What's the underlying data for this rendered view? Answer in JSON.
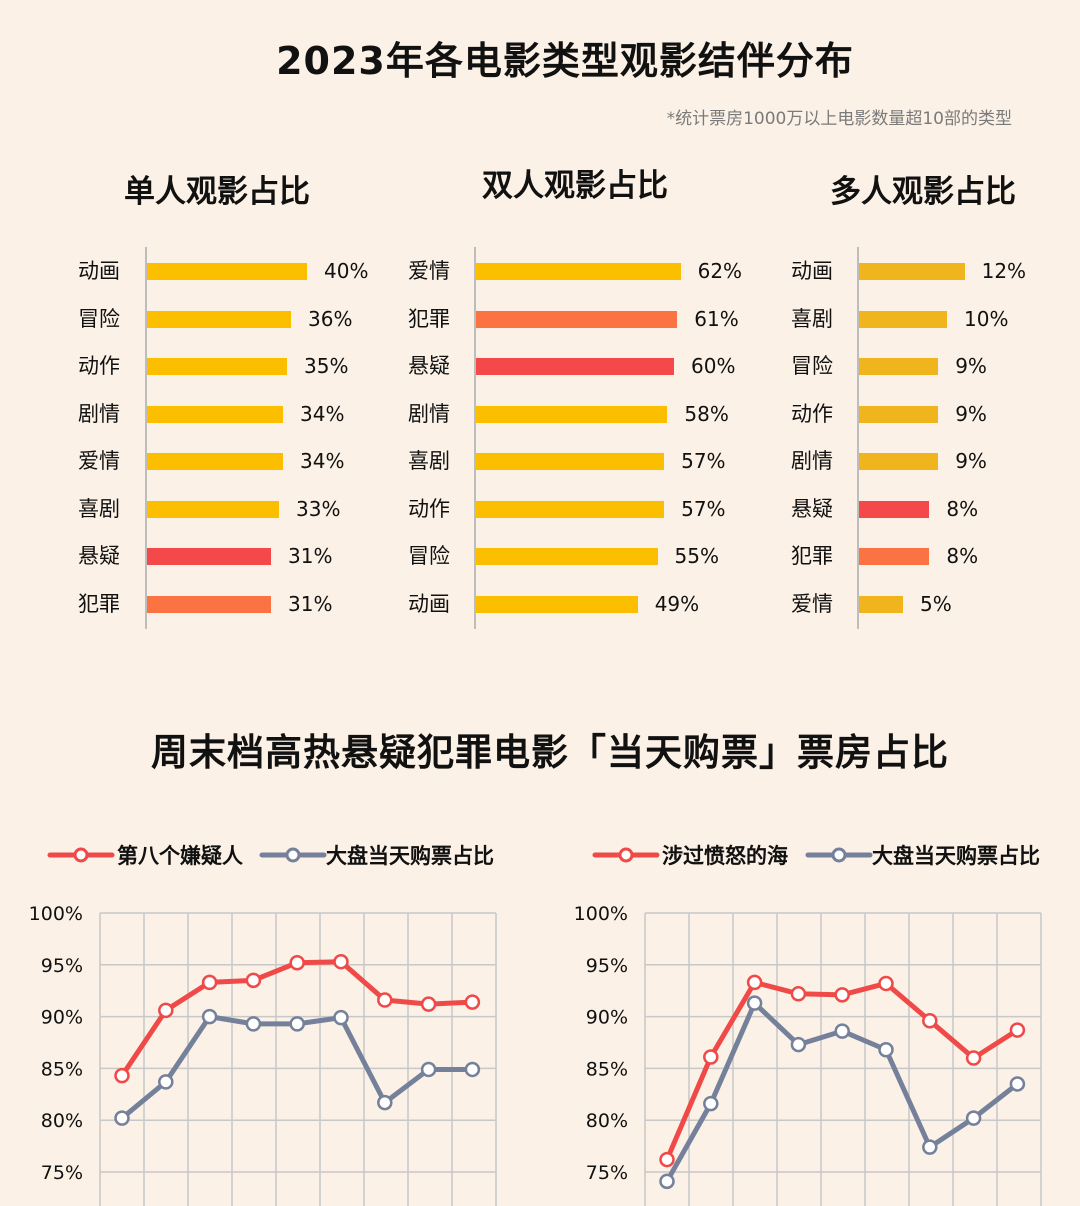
{
  "title": "2023年各电影类型观影结伴分布",
  "footnote": "*统计票房1000万以上电影数量超10部的类型",
  "colors": {
    "background": "#fbf1e6",
    "yellow": "#fbbf00",
    "gold": "#f0b51c",
    "orange": "#fb7342",
    "red": "#f5484a",
    "line_red": "#ef4a48",
    "line_gray": "#75819a"
  },
  "bar_panels": [
    {
      "title": "单人观影占比",
      "items": [
        {
          "label": "动画",
          "value": 40,
          "text": "40%",
          "color": "#fbbf00"
        },
        {
          "label": "冒险",
          "value": 36,
          "text": "36%",
          "color": "#fbbf00"
        },
        {
          "label": "动作",
          "value": 35,
          "text": "35%",
          "color": "#fbbf00"
        },
        {
          "label": "剧情",
          "value": 34,
          "text": "34%",
          "color": "#fbbf00"
        },
        {
          "label": "爱情",
          "value": 34,
          "text": "34%",
          "color": "#fbbf00"
        },
        {
          "label": "喜剧",
          "value": 33,
          "text": "33%",
          "color": "#fbbf00"
        },
        {
          "label": "悬疑",
          "value": 31,
          "text": "31%",
          "color": "#f5484a"
        },
        {
          "label": "犯罪",
          "value": 31,
          "text": "31%",
          "color": "#fb7342"
        }
      ]
    },
    {
      "title": "双人观影占比",
      "items": [
        {
          "label": "爱情",
          "value": 62,
          "text": "62%",
          "color": "#fbbf00"
        },
        {
          "label": "犯罪",
          "value": 61,
          "text": "61%",
          "color": "#fb7342"
        },
        {
          "label": "悬疑",
          "value": 60,
          "text": "60%",
          "color": "#f5484a"
        },
        {
          "label": "剧情",
          "value": 58,
          "text": "58%",
          "color": "#fbbf00"
        },
        {
          "label": "喜剧",
          "value": 57,
          "text": "57%",
          "color": "#fbbf00"
        },
        {
          "label": "动作",
          "value": 57,
          "text": "57%",
          "color": "#fbbf00"
        },
        {
          "label": "冒险",
          "value": 55,
          "text": "55%",
          "color": "#fbbf00"
        },
        {
          "label": "动画",
          "value": 49,
          "text": "49%",
          "color": "#fbbf00"
        }
      ]
    },
    {
      "title": "多人观影占比",
      "items": [
        {
          "label": "动画",
          "value": 12,
          "text": "12%",
          "color": "#f0b51c"
        },
        {
          "label": "喜剧",
          "value": 10,
          "text": "10%",
          "color": "#f0b51c"
        },
        {
          "label": "冒险",
          "value": 9,
          "text": "9%",
          "color": "#f0b51c"
        },
        {
          "label": "动作",
          "value": 9,
          "text": "9%",
          "color": "#f0b51c"
        },
        {
          "label": "剧情",
          "value": 9,
          "text": "9%",
          "color": "#f0b51c"
        },
        {
          "label": "悬疑",
          "value": 8,
          "text": "8%",
          "color": "#f5484a"
        },
        {
          "label": "犯罪",
          "value": 8,
          "text": "8%",
          "color": "#fb7342"
        },
        {
          "label": "爱情",
          "value": 5,
          "text": "5%",
          "color": "#f0b51c"
        }
      ]
    }
  ],
  "section2_title": "周末档高热悬疑犯罪电影「当天购票」票房占比",
  "chart_data": [
    {
      "type": "bar",
      "title": "单人观影占比",
      "orientation": "horizontal",
      "categories": [
        "动画",
        "冒险",
        "动作",
        "剧情",
        "爱情",
        "喜剧",
        "悬疑",
        "犯罪"
      ],
      "values": [
        40,
        36,
        35,
        34,
        34,
        33,
        31,
        31
      ],
      "unit": "%"
    },
    {
      "type": "bar",
      "title": "双人观影占比",
      "orientation": "horizontal",
      "categories": [
        "爱情",
        "犯罪",
        "悬疑",
        "剧情",
        "喜剧",
        "动作",
        "冒险",
        "动画"
      ],
      "values": [
        62,
        61,
        60,
        58,
        57,
        57,
        55,
        49
      ],
      "unit": "%"
    },
    {
      "type": "bar",
      "title": "多人观影占比",
      "orientation": "horizontal",
      "categories": [
        "动画",
        "喜剧",
        "冒险",
        "动作",
        "剧情",
        "悬疑",
        "犯罪",
        "爱情"
      ],
      "values": [
        12,
        10,
        9,
        9,
        9,
        8,
        8,
        5
      ],
      "unit": "%"
    },
    {
      "type": "line",
      "grid": true,
      "legend_position": "top",
      "y_ticks": [
        "100%",
        "95%",
        "90%",
        "85%",
        "80%",
        "75%"
      ],
      "ylim": [
        75,
        100
      ],
      "series": [
        {
          "name": "第八个嫌疑人",
          "color": "#ef4a48",
          "values": [
            84.3,
            90.6,
            93.3,
            93.5,
            95.2,
            95.3,
            91.6,
            91.2,
            91.4
          ]
        },
        {
          "name": "大盘当天购票占比",
          "color": "#75819a",
          "values": [
            80.2,
            83.7,
            90.0,
            89.3,
            89.3,
            89.9,
            81.7,
            84.9,
            84.9
          ]
        }
      ]
    },
    {
      "type": "line",
      "grid": true,
      "legend_position": "top",
      "y_ticks": [
        "100%",
        "95%",
        "90%",
        "85%",
        "80%",
        "75%"
      ],
      "ylim": [
        75,
        100
      ],
      "series": [
        {
          "name": "涉过愤怒的海",
          "color": "#ef4a48",
          "values": [
            76.2,
            86.1,
            93.3,
            92.2,
            92.1,
            93.2,
            89.6,
            86.0,
            88.7
          ]
        },
        {
          "name": "大盘当天购票占比",
          "color": "#75819a",
          "values": [
            74.1,
            81.6,
            91.3,
            87.3,
            88.6,
            86.8,
            77.4,
            80.2,
            83.5
          ]
        }
      ]
    }
  ]
}
